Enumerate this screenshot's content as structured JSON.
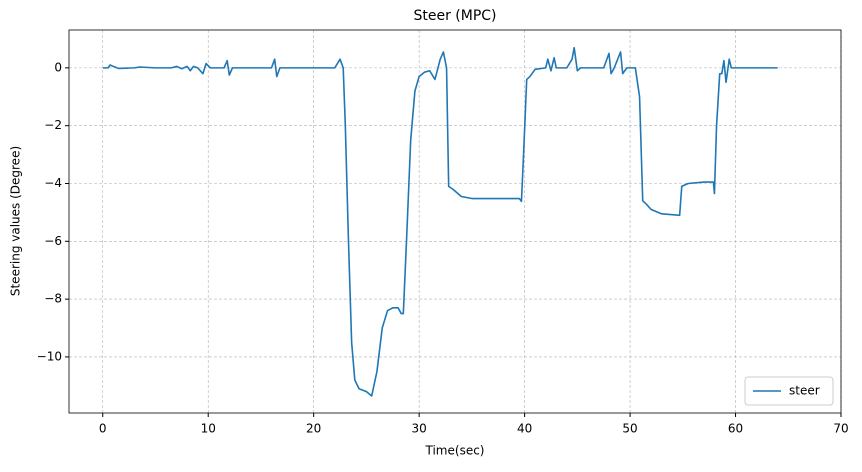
{
  "chart_data": {
    "type": "line",
    "title": "Steer (MPC)",
    "x_label": "Time(sec)",
    "y_label": "Steering values (Degree)",
    "x": [
      0,
      0.5,
      0.7,
      1,
      1.5,
      3,
      3.5,
      5,
      6.5,
      7,
      7.5,
      8,
      8.3,
      8.6,
      9,
      9.5,
      9.8,
      10.2,
      11.5,
      11.8,
      12,
      12.3,
      16,
      16.3,
      16.5,
      16.8,
      20,
      22,
      22.5,
      22.8,
      23,
      23.3,
      23.6,
      23.9,
      24.3,
      25,
      25.5,
      26,
      26.5,
      27,
      27.5,
      28,
      28.3,
      28.5,
      28.8,
      29.2,
      29.6,
      30,
      30.5,
      31,
      31.5,
      32,
      32.3,
      32.6,
      32.8,
      33.2,
      34,
      35,
      38,
      39.5,
      39.7,
      39.9,
      40.2,
      40.5,
      41,
      42,
      42.2,
      42.5,
      42.8,
      43,
      44,
      44.5,
      44.7,
      45,
      45.3,
      46,
      47.5,
      48,
      48.2,
      48.5,
      49.1,
      49.3,
      49.7,
      50.5,
      50.9,
      51.2,
      51.5,
      52,
      53,
      54,
      54.7,
      54.9,
      55.5,
      57,
      57.9,
      58,
      58.2,
      58.5,
      58.7,
      58.9,
      59.1,
      59.4,
      59.6,
      64
    ],
    "series": [
      {
        "name": "steer",
        "color": "#1f77b4",
        "values": [
          0,
          0,
          0.1,
          0.05,
          -0.02,
          0,
          0.03,
          0,
          0,
          0.05,
          -0.03,
          0.05,
          -0.1,
          0.05,
          0,
          -0.2,
          0.15,
          0,
          0,
          0.25,
          -0.25,
          0,
          0,
          0.3,
          -0.3,
          0,
          0,
          0,
          0.3,
          0,
          -2,
          -6,
          -9.5,
          -10.8,
          -11.1,
          -11.2,
          -11.35,
          -10.5,
          -9,
          -8.4,
          -8.3,
          -8.3,
          -8.5,
          -8.5,
          -6,
          -2.5,
          -0.8,
          -0.3,
          -0.15,
          -0.1,
          -0.4,
          0.3,
          0.55,
          0,
          -4.1,
          -4.2,
          -4.45,
          -4.52,
          -4.52,
          -4.52,
          -4.62,
          -3,
          -0.4,
          -0.3,
          -0.05,
          0,
          0.3,
          -0.1,
          0.35,
          0,
          0,
          0.3,
          0.7,
          -0.1,
          0,
          0,
          0,
          0.5,
          -0.2,
          0,
          0.55,
          -0.2,
          0,
          0,
          -1,
          -4.6,
          -4.7,
          -4.9,
          -5.05,
          -5.08,
          -5.1,
          -4.1,
          -4,
          -3.95,
          -3.95,
          -4.35,
          -2,
          -0.2,
          -0.2,
          0.25,
          -0.5,
          0.3,
          0,
          0
        ]
      }
    ],
    "xlim": [
      -3.2,
      70
    ],
    "ylim": [
      -11.94,
      1.31
    ],
    "xticks": [
      0,
      10,
      20,
      30,
      40,
      50,
      60,
      70
    ],
    "yticks": [
      {
        "value": -10,
        "label": "−10"
      },
      {
        "value": -8,
        "label": "−8"
      },
      {
        "value": -6,
        "label": "−6"
      },
      {
        "value": -4,
        "label": "−4"
      },
      {
        "value": -2,
        "label": "−2"
      },
      0
    ],
    "grid": true,
    "legend": "lower right"
  }
}
